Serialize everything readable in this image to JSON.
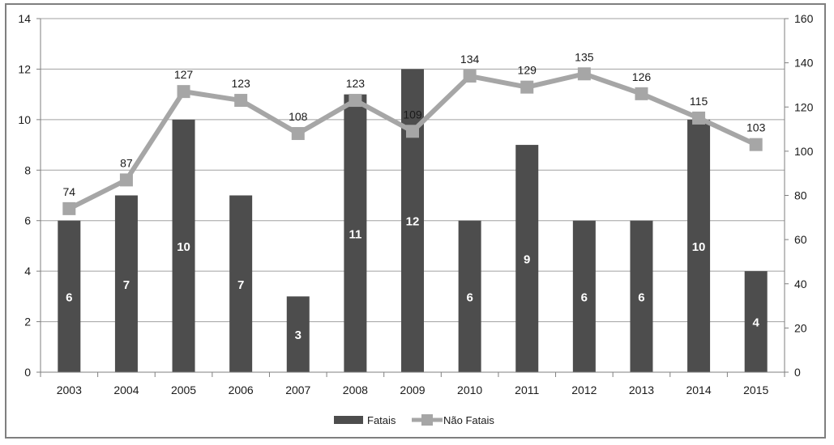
{
  "chart_data": {
    "type": "bar",
    "categories": [
      "2003",
      "2004",
      "2005",
      "2006",
      "2007",
      "2008",
      "2009",
      "2010",
      "2011",
      "2012",
      "2013",
      "2014",
      "2015"
    ],
    "series": [
      {
        "name": "Fatais",
        "type": "bar",
        "axis": "left",
        "values": [
          6,
          7,
          10,
          7,
          3,
          11,
          12,
          6,
          9,
          6,
          6,
          10,
          4
        ]
      },
      {
        "name": "Não Fatais",
        "type": "line",
        "axis": "right",
        "values": [
          74,
          87,
          127,
          123,
          108,
          123,
          109,
          134,
          129,
          135,
          126,
          115,
          103
        ]
      }
    ],
    "y_left": {
      "ylim": [
        0,
        14
      ],
      "ticks": [
        "0",
        "2",
        "4",
        "6",
        "8",
        "10",
        "12",
        "14"
      ]
    },
    "y_right": {
      "ylim": [
        0,
        160
      ],
      "ticks": [
        "0",
        "20",
        "40",
        "60",
        "80",
        "100",
        "120",
        "140",
        "160"
      ]
    },
    "grid": true,
    "legend": {
      "placement": "bottom"
    },
    "colors": {
      "bar": "#4d4d4d",
      "line": "#a6a6a6",
      "grid": "#a0a0a0"
    }
  }
}
